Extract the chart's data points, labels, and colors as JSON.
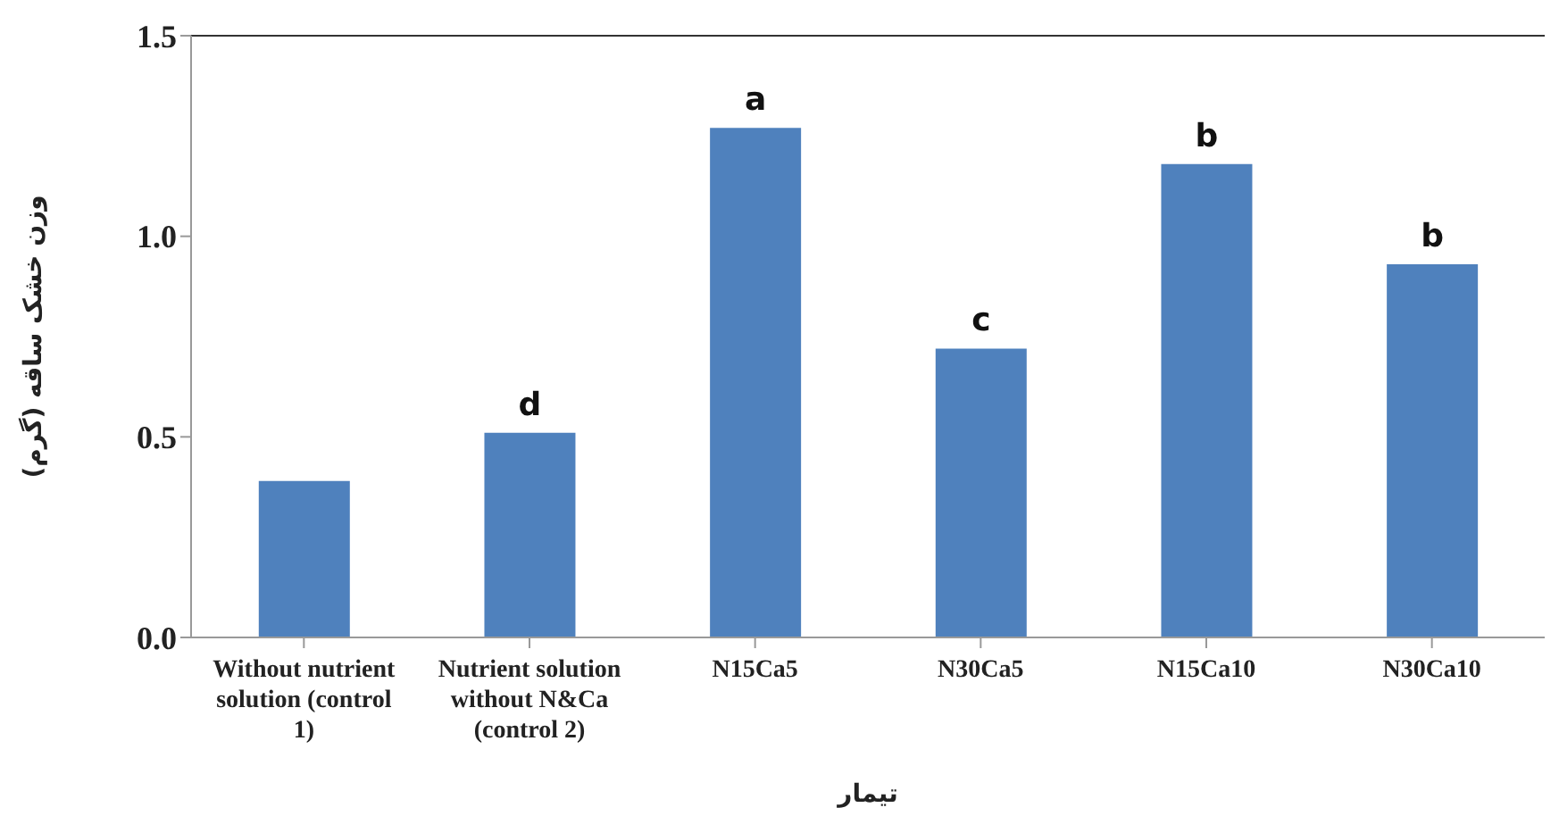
{
  "chart_data": {
    "type": "bar",
    "xlabel": "تیمار",
    "ylabel": "وزن خشک ساقه (گرم)",
    "categories": [
      "Without nutrient solution (control 1)",
      "Nutrient solution without N&Ca (control 2)",
      "N15Ca5",
      "N30Ca5",
      "N15Ca10",
      "N30Ca10"
    ],
    "values": [
      0.39,
      0.51,
      1.27,
      0.72,
      1.18,
      0.93
    ],
    "value_labels": [
      null,
      "d",
      "a",
      "c",
      "b",
      "b"
    ],
    "color": "#4f81bd",
    "ylim": [
      0,
      1.5
    ],
    "yticks": [
      {
        "value": 0,
        "label": "0.0"
      },
      0.5,
      {
        "value": 1,
        "label": "1.0"
      },
      1.5
    ],
    "grid": false,
    "legend": false
  }
}
